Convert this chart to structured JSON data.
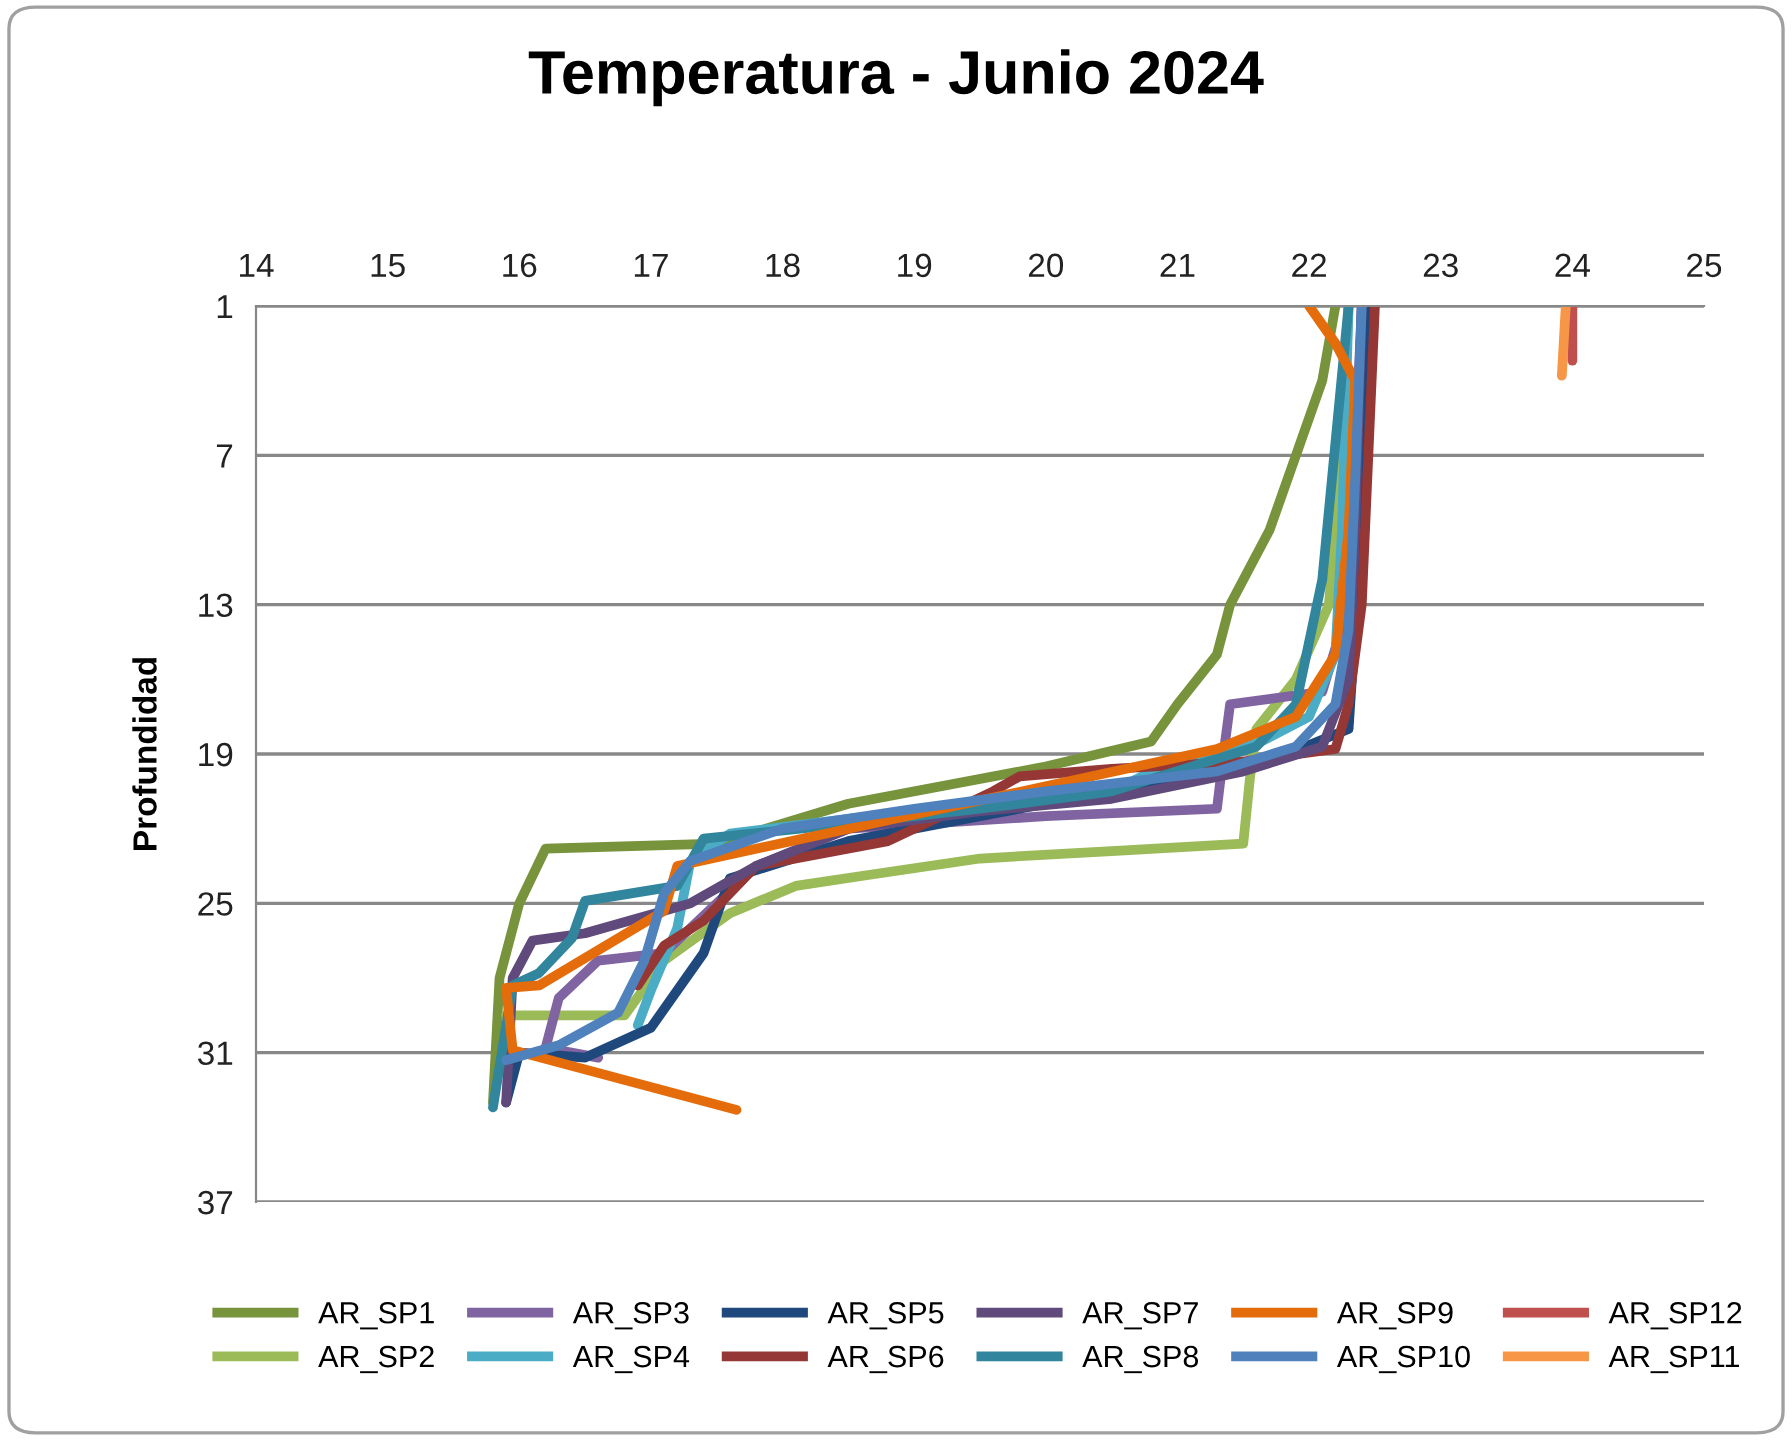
{
  "chart_data": {
    "type": "line",
    "title": "Temperatura - Junio 2024",
    "ylabel": "Profundidad",
    "xlim": [
      14,
      25
    ],
    "xticks": [
      14,
      15,
      16,
      17,
      18,
      19,
      20,
      21,
      22,
      23,
      24,
      25
    ],
    "ylim": [
      37,
      1
    ],
    "yticks": [
      1,
      7,
      13,
      19,
      25,
      31,
      37
    ],
    "grid": "y",
    "legend": "bottom",
    "marker": "none",
    "line_style": "solid",
    "series": [
      {
        "name": "AR_SP1",
        "color": "#77933c",
        "x": [
          22.2,
          22.1,
          21.9,
          21.7,
          21.4,
          21.3,
          21.0,
          20.8,
          20.0,
          18.5,
          17.5,
          16.2,
          16.0,
          15.85,
          15.8
        ],
        "values": [
          1,
          4,
          7,
          10,
          13,
          15,
          17,
          18.5,
          19.5,
          21,
          22.6,
          22.8,
          25,
          28,
          33
        ]
      },
      {
        "name": "AR_SP2",
        "color": "#9bbb59",
        "x": [
          22.3,
          22.25,
          22.15,
          21.9,
          21.6,
          21.55,
          21.5,
          20.5,
          19.5,
          18.6,
          18.1,
          17.6,
          17.1,
          16.8,
          15.9
        ],
        "values": [
          1,
          7,
          13,
          16,
          18,
          20,
          22.6,
          22.9,
          23.2,
          23.9,
          24.3,
          25.4,
          27.3,
          29.5,
          29.5
        ]
      },
      {
        "name": "AR_SP3",
        "color": "#8064a2",
        "x": [
          22.4,
          22.35,
          22.3,
          22.1,
          21.4,
          21.35,
          21.3,
          20.0,
          18.5,
          17.8,
          17.4,
          17.1,
          16.6,
          16.3,
          16.2,
          16.6
        ],
        "values": [
          1,
          7,
          13,
          16.5,
          17,
          19,
          21.2,
          21.5,
          22,
          23.5,
          25.5,
          27,
          27.3,
          28.8,
          30.8,
          31.2
        ]
      },
      {
        "name": "AR_SP4",
        "color": "#4bacc6",
        "x": [
          22.3,
          22.25,
          22.2,
          22.0,
          21.6,
          21.0,
          20.5,
          19.5,
          18.5,
          17.6,
          17.3,
          17.2,
          17.0,
          16.9
        ],
        "values": [
          1,
          10,
          15,
          17.5,
          18.6,
          19.2,
          20.5,
          21,
          21.6,
          22.2,
          23.3,
          26,
          28.5,
          29.9
        ]
      },
      {
        "name": "AR_SP5",
        "color": "#1f497d",
        "x": [
          22.45,
          22.4,
          22.3,
          21.6,
          20.0,
          18.5,
          17.6,
          17.4,
          17.0,
          16.5,
          16.0,
          15.9
        ],
        "values": [
          1,
          10,
          18,
          19.5,
          21,
          22.5,
          24,
          27,
          30,
          31.2,
          31,
          33
        ]
      },
      {
        "name": "AR_SP6",
        "color": "#953735",
        "x": [
          22.5,
          22.45,
          22.4,
          22.3,
          22.2,
          21.5,
          20.5,
          19.8,
          19.6,
          19.4,
          18.8,
          17.8,
          17.4,
          17.1,
          16.9
        ],
        "values": [
          1,
          7,
          13,
          17,
          18.8,
          19.3,
          19.6,
          19.9,
          20.5,
          21,
          22.5,
          23.5,
          25.7,
          26.7,
          28.3
        ]
      },
      {
        "name": "AR_SP7",
        "color": "#604a7b",
        "x": [
          22.4,
          22.35,
          22.3,
          22.1,
          21.5,
          20.5,
          19.5,
          18.5,
          17.8,
          17.3,
          16.5,
          16.1,
          15.95,
          15.9
        ],
        "values": [
          1,
          10,
          16,
          18.7,
          19.7,
          20.8,
          21.3,
          22,
          23.5,
          25,
          26.2,
          26.5,
          28,
          33
        ]
      },
      {
        "name": "AR_SP8",
        "color": "#31859c",
        "x": [
          22.3,
          22.1,
          21.9,
          21.6,
          20.5,
          19.5,
          18.5,
          17.4,
          17.2,
          16.5,
          16.4,
          16.15,
          15.95,
          15.8
        ],
        "values": [
          1,
          12,
          17,
          18.7,
          20.5,
          21.2,
          21.8,
          22.4,
          24.3,
          24.9,
          26.4,
          27.8,
          28.3,
          33.2
        ]
      },
      {
        "name": "AR_SP9",
        "color": "#e46c0a",
        "x": [
          22.0,
          22.2,
          22.35,
          22.3,
          22.2,
          21.9,
          21.3,
          20.0,
          18.5,
          17.2,
          17.1,
          16.15,
          15.9,
          15.95,
          17.65
        ],
        "values": [
          1,
          2.5,
          4,
          10,
          15,
          17.5,
          18.8,
          20.3,
          22,
          23.5,
          25.3,
          28.3,
          28.4,
          30.9,
          33.3
        ]
      },
      {
        "name": "AR_SP10",
        "color": "#4f81bd",
        "x": [
          22.4,
          22.35,
          22.3,
          22.2,
          21.9,
          21.3,
          20.0,
          19.0,
          18.0,
          17.3,
          17.1,
          16.95,
          16.75,
          16.3,
          16.1,
          15.9
        ],
        "values": [
          1,
          8,
          14,
          17,
          18.7,
          19.7,
          20.5,
          21.2,
          22,
          23.3,
          24.6,
          27.3,
          29.4,
          30.7,
          31,
          31.3
        ]
      },
      {
        "name": "AR_SP12",
        "color": "#c0504d",
        "x": [
          24.0,
          24.0
        ],
        "values": [
          1,
          3.2
        ]
      },
      {
        "name": "AR_SP11",
        "color": "#f79646",
        "x": [
          23.95,
          23.92
        ],
        "values": [
          1,
          3.8
        ]
      }
    ]
  }
}
